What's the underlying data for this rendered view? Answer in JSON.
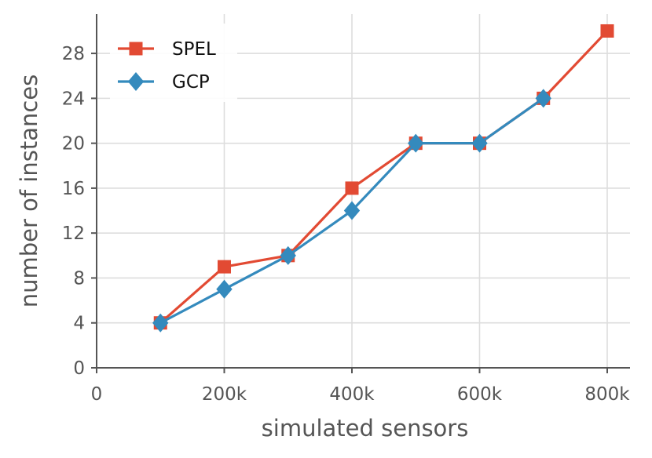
{
  "chart_data": {
    "type": "line",
    "title": "",
    "xlabel": "simulated sensors",
    "ylabel": "number of instances",
    "xlim": [
      0,
      800000
    ],
    "ylim": [
      0,
      31.5
    ],
    "x_ticks": [
      {
        "value": 0,
        "label": "0"
      },
      {
        "value": 200000,
        "label": "200k"
      },
      {
        "value": 400000,
        "label": "400k"
      },
      {
        "value": 600000,
        "label": "600k"
      },
      {
        "value": 800000,
        "label": "800k"
      }
    ],
    "y_ticks": [
      {
        "value": 0,
        "label": "0"
      },
      {
        "value": 4,
        "label": "4"
      },
      {
        "value": 8,
        "label": "8"
      },
      {
        "value": 12,
        "label": "12"
      },
      {
        "value": 16,
        "label": "16"
      },
      {
        "value": 20,
        "label": "20"
      },
      {
        "value": 24,
        "label": "24"
      },
      {
        "value": 28,
        "label": "28"
      }
    ],
    "x": [
      100000,
      200000,
      300000,
      400000,
      500000,
      600000,
      700000,
      800000
    ],
    "series": [
      {
        "name": "SPEL",
        "color": "#e24a33",
        "marker": "square",
        "x": [
          100000,
          200000,
          300000,
          400000,
          500000,
          600000,
          700000,
          800000
        ],
        "values": [
          4,
          9,
          10,
          16,
          20,
          20,
          24,
          30
        ]
      },
      {
        "name": "GCP",
        "color": "#348abd",
        "marker": "diamond",
        "x": [
          100000,
          200000,
          300000,
          400000,
          500000,
          600000,
          700000
        ],
        "values": [
          4,
          7,
          10,
          14,
          20,
          20,
          24
        ]
      }
    ],
    "grid": true,
    "legend_position": "top-left"
  }
}
